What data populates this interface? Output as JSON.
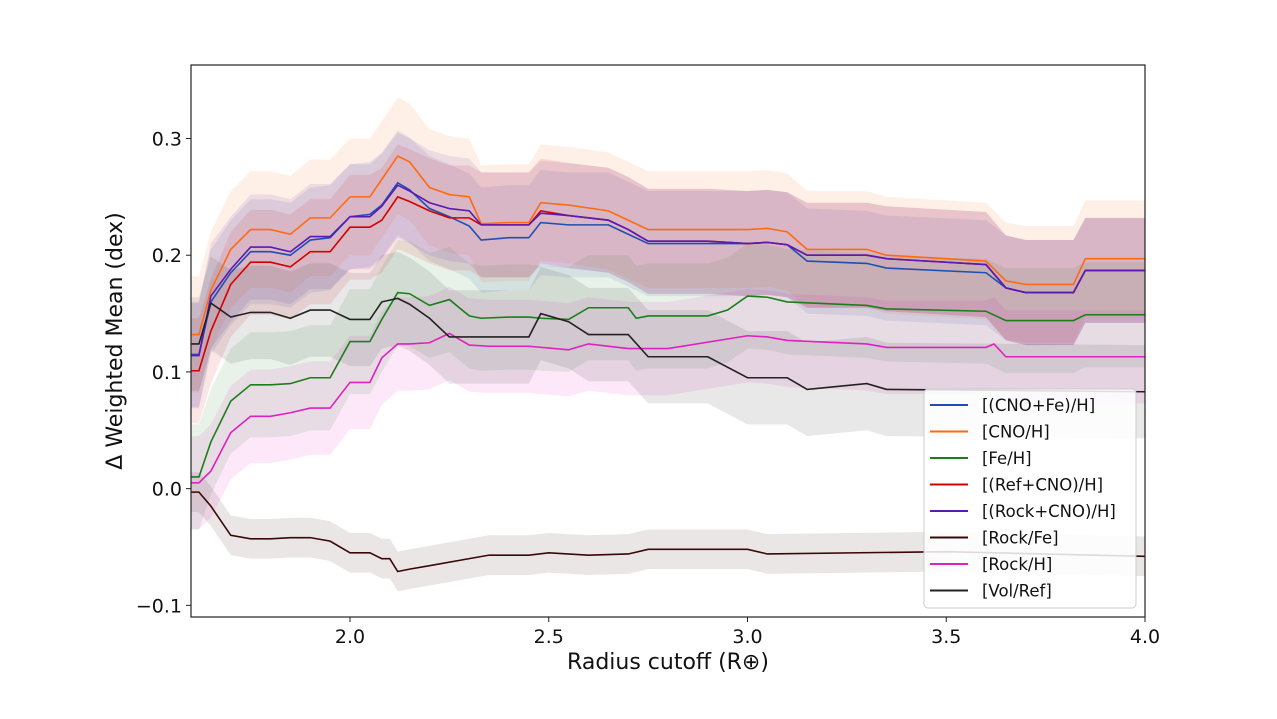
{
  "chart_data": {
    "type": "line",
    "xlabel": "Radius cutoff (R⊕)",
    "ylabel": "Δ Weighted Mean (dex)",
    "xlim": [
      1.6,
      4.0
    ],
    "ylim": [
      -0.11,
      0.363
    ],
    "xticks": [
      "2.0",
      "2.5",
      "3.0",
      "3.5",
      "4.0"
    ],
    "xtick_values": [
      2.0,
      2.5,
      3.0,
      3.5,
      4.0
    ],
    "yticks": [
      "−0.1",
      "0.0",
      "0.1",
      "0.2",
      "0.3"
    ],
    "ytick_values": [
      -0.1,
      0.0,
      0.1,
      0.2,
      0.3
    ],
    "grid": false,
    "legend_position": "lower-right",
    "shaded_uncertainty_bands": true,
    "series": [
      {
        "name": "[(CNO+Fe)/H]",
        "color": "#1f4fb4",
        "band": 0.045,
        "x": [
          1.6,
          1.62,
          1.65,
          1.7,
          1.75,
          1.8,
          1.85,
          1.9,
          1.95,
          2.0,
          2.05,
          2.08,
          2.12,
          2.15,
          2.2,
          2.25,
          2.3,
          2.33,
          2.4,
          2.45,
          2.48,
          2.55,
          2.65,
          2.7,
          2.75,
          2.9,
          3.0,
          3.05,
          3.1,
          3.15,
          3.3,
          3.35,
          3.6,
          3.65,
          3.7,
          3.82,
          3.85,
          4.0
        ],
        "y": [
          0.115,
          0.115,
          0.16,
          0.185,
          0.203,
          0.203,
          0.2,
          0.213,
          0.215,
          0.233,
          0.235,
          0.243,
          0.262,
          0.256,
          0.24,
          0.233,
          0.225,
          0.213,
          0.215,
          0.215,
          0.228,
          0.226,
          0.226,
          0.218,
          0.21,
          0.21,
          0.21,
          0.211,
          0.209,
          0.195,
          0.193,
          0.189,
          0.185,
          0.172,
          0.168,
          0.168,
          0.187,
          0.187
        ]
      },
      {
        "name": "[CNO/H]",
        "color": "#ff6a10",
        "band": 0.05,
        "x": [
          1.6,
          1.62,
          1.65,
          1.7,
          1.75,
          1.8,
          1.85,
          1.9,
          1.95,
          2.0,
          2.05,
          2.08,
          2.12,
          2.15,
          2.2,
          2.25,
          2.3,
          2.33,
          2.4,
          2.45,
          2.48,
          2.55,
          2.65,
          2.7,
          2.75,
          2.9,
          3.0,
          3.05,
          3.1,
          3.15,
          3.3,
          3.35,
          3.6,
          3.65,
          3.7,
          3.82,
          3.85,
          4.0
        ],
        "y": [
          0.132,
          0.132,
          0.17,
          0.205,
          0.222,
          0.222,
          0.218,
          0.232,
          0.232,
          0.25,
          0.25,
          0.265,
          0.285,
          0.28,
          0.258,
          0.252,
          0.25,
          0.227,
          0.228,
          0.228,
          0.245,
          0.243,
          0.238,
          0.23,
          0.222,
          0.222,
          0.222,
          0.223,
          0.22,
          0.205,
          0.205,
          0.2,
          0.195,
          0.178,
          0.175,
          0.175,
          0.197,
          0.197
        ]
      },
      {
        "name": "[Fe/H]",
        "color": "#1a7f1a",
        "band": 0.045,
        "x": [
          1.6,
          1.62,
          1.65,
          1.7,
          1.75,
          1.8,
          1.85,
          1.9,
          1.95,
          2.0,
          2.05,
          2.08,
          2.12,
          2.15,
          2.2,
          2.25,
          2.3,
          2.33,
          2.4,
          2.45,
          2.48,
          2.55,
          2.6,
          2.7,
          2.72,
          2.75,
          2.9,
          2.95,
          3.0,
          3.05,
          3.1,
          3.3,
          3.35,
          3.6,
          3.65,
          3.82,
          3.85,
          4.0
        ],
        "y": [
          0.01,
          0.01,
          0.04,
          0.075,
          0.089,
          0.089,
          0.09,
          0.095,
          0.095,
          0.126,
          0.126,
          0.145,
          0.168,
          0.167,
          0.157,
          0.162,
          0.148,
          0.146,
          0.147,
          0.147,
          0.146,
          0.145,
          0.155,
          0.155,
          0.146,
          0.148,
          0.148,
          0.153,
          0.165,
          0.164,
          0.16,
          0.157,
          0.154,
          0.152,
          0.144,
          0.144,
          0.149,
          0.149
        ]
      },
      {
        "name": "[(Ref+CNO)/H]",
        "color": "#d40000",
        "band": 0.045,
        "x": [
          1.6,
          1.62,
          1.65,
          1.7,
          1.75,
          1.8,
          1.85,
          1.9,
          1.95,
          2.0,
          2.05,
          2.08,
          2.12,
          2.15,
          2.2,
          2.25,
          2.3,
          2.33,
          2.4,
          2.45,
          2.48,
          2.55,
          2.65,
          2.7,
          2.75,
          2.9,
          3.0,
          3.05,
          3.1,
          3.15,
          3.3,
          3.35,
          3.6,
          3.65,
          3.7,
          3.82,
          3.85,
          4.0
        ],
        "y": [
          0.101,
          0.101,
          0.135,
          0.175,
          0.194,
          0.194,
          0.19,
          0.203,
          0.203,
          0.224,
          0.224,
          0.23,
          0.25,
          0.246,
          0.238,
          0.232,
          0.232,
          0.226,
          0.226,
          0.226,
          0.238,
          0.234,
          0.23,
          0.222,
          0.212,
          0.212,
          0.21,
          0.211,
          0.209,
          0.2,
          0.2,
          0.197,
          0.192,
          0.172,
          0.168,
          0.168,
          0.187,
          0.187
        ]
      },
      {
        "name": "[(Rock+CNO)/H]",
        "color": "#5a1ab4",
        "band": 0.045,
        "x": [
          1.6,
          1.62,
          1.65,
          1.7,
          1.75,
          1.8,
          1.85,
          1.9,
          1.95,
          2.0,
          2.05,
          2.08,
          2.12,
          2.15,
          2.2,
          2.25,
          2.3,
          2.33,
          2.4,
          2.45,
          2.48,
          2.55,
          2.65,
          2.7,
          2.75,
          2.9,
          3.0,
          3.05,
          3.1,
          3.15,
          3.3,
          3.35,
          3.6,
          3.65,
          3.7,
          3.82,
          3.85,
          4.0
        ],
        "y": [
          0.114,
          0.114,
          0.165,
          0.188,
          0.207,
          0.207,
          0.203,
          0.216,
          0.216,
          0.233,
          0.233,
          0.242,
          0.26,
          0.255,
          0.245,
          0.24,
          0.238,
          0.226,
          0.226,
          0.226,
          0.236,
          0.234,
          0.23,
          0.222,
          0.212,
          0.212,
          0.21,
          0.211,
          0.209,
          0.2,
          0.2,
          0.197,
          0.192,
          0.172,
          0.168,
          0.168,
          0.187,
          0.187
        ]
      },
      {
        "name": "[Rock/Fe]",
        "color": "#3a0808",
        "band": 0.017,
        "x": [
          1.6,
          1.62,
          1.65,
          1.7,
          1.75,
          1.8,
          1.85,
          1.9,
          1.95,
          2.0,
          2.05,
          2.08,
          2.1,
          2.12,
          2.15,
          2.2,
          2.3,
          2.35,
          2.45,
          2.5,
          2.6,
          2.7,
          2.75,
          3.0,
          3.05,
          3.5,
          4.0
        ],
        "y": [
          -0.003,
          -0.003,
          -0.015,
          -0.04,
          -0.043,
          -0.043,
          -0.042,
          -0.042,
          -0.045,
          -0.055,
          -0.055,
          -0.06,
          -0.06,
          -0.071,
          -0.069,
          -0.066,
          -0.06,
          -0.057,
          -0.057,
          -0.055,
          -0.057,
          -0.056,
          -0.052,
          -0.052,
          -0.056,
          -0.054,
          -0.058
        ]
      },
      {
        "name": "[Rock/H]",
        "color": "#e020c0",
        "band": 0.04,
        "x": [
          1.6,
          1.62,
          1.65,
          1.7,
          1.75,
          1.8,
          1.85,
          1.9,
          1.95,
          2.0,
          2.05,
          2.08,
          2.12,
          2.15,
          2.2,
          2.25,
          2.3,
          2.35,
          2.45,
          2.55,
          2.6,
          2.7,
          2.75,
          2.8,
          3.0,
          3.05,
          3.1,
          3.3,
          3.35,
          3.6,
          3.62,
          3.65,
          4.0
        ],
        "y": [
          0.005,
          0.005,
          0.015,
          0.048,
          0.062,
          0.062,
          0.065,
          0.069,
          0.069,
          0.091,
          0.091,
          0.112,
          0.124,
          0.124,
          0.125,
          0.133,
          0.123,
          0.122,
          0.122,
          0.119,
          0.124,
          0.12,
          0.12,
          0.12,
          0.131,
          0.13,
          0.127,
          0.124,
          0.121,
          0.121,
          0.124,
          0.113,
          0.113
        ]
      },
      {
        "name": "[Vol/Ref]",
        "color": "#222222",
        "band": 0.04,
        "x": [
          1.6,
          1.62,
          1.65,
          1.7,
          1.75,
          1.8,
          1.85,
          1.9,
          1.95,
          2.0,
          2.05,
          2.08,
          2.12,
          2.15,
          2.2,
          2.25,
          2.3,
          2.35,
          2.45,
          2.48,
          2.55,
          2.6,
          2.7,
          2.75,
          2.9,
          3.0,
          3.1,
          3.15,
          3.3,
          3.35,
          4.0
        ],
        "y": [
          0.124,
          0.124,
          0.159,
          0.147,
          0.151,
          0.151,
          0.146,
          0.153,
          0.153,
          0.145,
          0.145,
          0.16,
          0.163,
          0.158,
          0.146,
          0.13,
          0.13,
          0.13,
          0.13,
          0.15,
          0.143,
          0.132,
          0.132,
          0.113,
          0.113,
          0.095,
          0.095,
          0.085,
          0.09,
          0.085,
          0.083
        ]
      }
    ]
  }
}
